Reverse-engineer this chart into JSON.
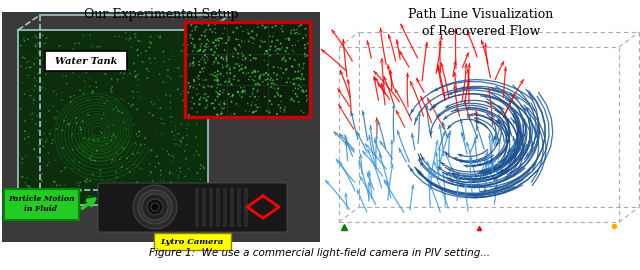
{
  "title_left": "Our Experimental Setup",
  "title_right": "Path Line Visualization\nof Recovered Flow",
  "bg_color": "#ffffff",
  "caption_text": "Figure 1:  We use a commercial light-field camera in PIV setting...",
  "title_fontsize": 9,
  "caption_fontsize": 7.5,
  "left_bg": "#3a3a3a",
  "tank_color": "#0d3a10",
  "tank_edge": "#7ab0b0",
  "particle_color": "#55ee55",
  "inset_edge": "#cc0000",
  "inset_bg": "#0a2a0a",
  "cam_color": "#1a1a1a",
  "water_tank_label_bg": "white",
  "lytro_label_bg": "#ffff00",
  "particle_label_bg": "#22cc22"
}
